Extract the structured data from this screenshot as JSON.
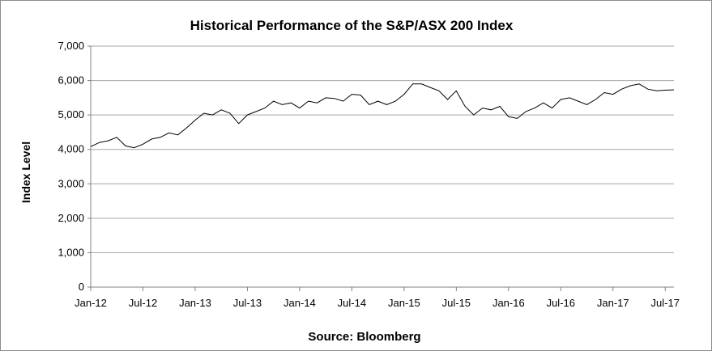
{
  "chart_data": {
    "type": "line",
    "title": "Historical Performance of the S&P/ASX 200 Index",
    "ylabel": "Index Level",
    "xlabel": "Source: Bloomberg",
    "ylim": [
      0,
      7000
    ],
    "yticks": [
      "0",
      "1,000",
      "2,000",
      "3,000",
      "4,000",
      "5,000",
      "6,000",
      "7,000"
    ],
    "ytick_values": [
      0,
      1000,
      2000,
      3000,
      4000,
      5000,
      6000,
      7000
    ],
    "x_range_months": [
      "2012-01",
      "2017-08"
    ],
    "xticks": [
      "Jan-12",
      "Jul-12",
      "Jan-13",
      "Jul-13",
      "Jan-14",
      "Jul-14",
      "Jan-15",
      "Jul-15",
      "Jan-16",
      "Jul-16",
      "Jan-17",
      "Jul-17"
    ],
    "xtick_dates": [
      "2012-01",
      "2012-07",
      "2013-01",
      "2013-07",
      "2014-01",
      "2014-07",
      "2015-01",
      "2015-07",
      "2016-01",
      "2016-07",
      "2017-01",
      "2017-07"
    ],
    "grid": "horizontal",
    "line_color": "#000000",
    "grid_color": "#a6a6a6",
    "series": [
      {
        "x": [
          "2012-01",
          "2012-02",
          "2012-03",
          "2012-04",
          "2012-05",
          "2012-06",
          "2012-07",
          "2012-08",
          "2012-09",
          "2012-10",
          "2012-11",
          "2012-12",
          "2013-01",
          "2013-02",
          "2013-03",
          "2013-04",
          "2013-05",
          "2013-06",
          "2013-07",
          "2013-08",
          "2013-09",
          "2013-10",
          "2013-11",
          "2013-12",
          "2014-01",
          "2014-02",
          "2014-03",
          "2014-04",
          "2014-05",
          "2014-06",
          "2014-07",
          "2014-08",
          "2014-09",
          "2014-10",
          "2014-11",
          "2014-12",
          "2015-01",
          "2015-02",
          "2015-03",
          "2015-04",
          "2015-05",
          "2015-06",
          "2015-07",
          "2015-08",
          "2015-09",
          "2015-10",
          "2015-11",
          "2015-12",
          "2016-01",
          "2016-02",
          "2016-03",
          "2016-04",
          "2016-05",
          "2016-06",
          "2016-07",
          "2016-08",
          "2016-09",
          "2016-10",
          "2016-11",
          "2016-12",
          "2017-01",
          "2017-02",
          "2017-03",
          "2017-04",
          "2017-05",
          "2017-06",
          "2017-07",
          "2017-08"
        ],
        "values": [
          4080,
          4200,
          4250,
          4350,
          4100,
          4050,
          4150,
          4300,
          4350,
          4480,
          4420,
          4620,
          4850,
          5050,
          5000,
          5150,
          5050,
          4750,
          5000,
          5100,
          5200,
          5400,
          5300,
          5350,
          5200,
          5400,
          5350,
          5500,
          5480,
          5400,
          5600,
          5580,
          5300,
          5400,
          5300,
          5400,
          5600,
          5900,
          5900,
          5800,
          5700,
          5450,
          5700,
          5250,
          5000,
          5200,
          5150,
          5250,
          4950,
          4900,
          5100,
          5200,
          5350,
          5200,
          5450,
          5500,
          5400,
          5300,
          5450,
          5650,
          5600,
          5750,
          5850,
          5900,
          5750,
          5700,
          5720,
          5730
        ]
      }
    ]
  }
}
